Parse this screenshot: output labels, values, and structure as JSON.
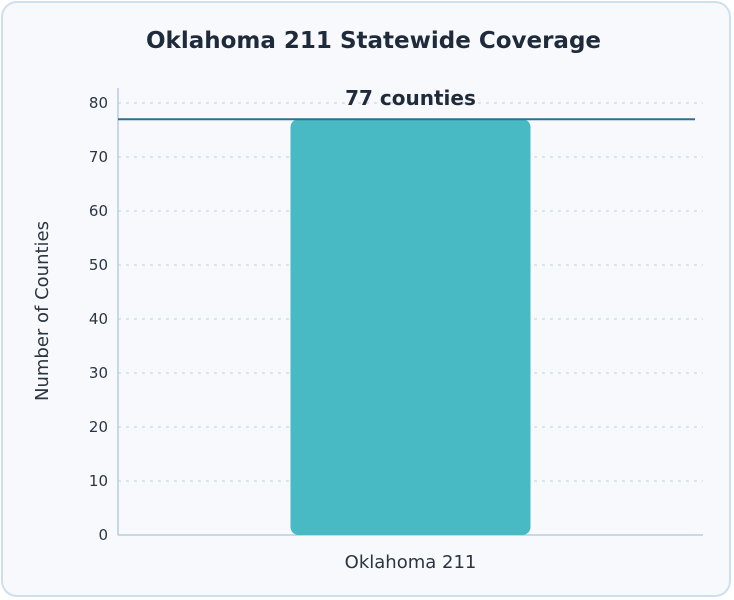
{
  "chart_data": {
    "type": "bar",
    "title": "Oklahoma 211 Statewide Coverage",
    "ylabel": "Number of Counties",
    "xlabel": "",
    "categories": [
      "Oklahoma 211"
    ],
    "values": [
      77
    ],
    "ylim": [
      0,
      80
    ],
    "yticks": [
      "0",
      "10",
      "20",
      "30",
      "40",
      "50",
      "60",
      "70",
      "80"
    ],
    "grid": true,
    "reference_line": {
      "value": 77,
      "label": "77 counties"
    },
    "colors": {
      "bar": "#48bac3",
      "reference_line": "#2f6f95",
      "grid": "#c9dbe6"
    }
  }
}
